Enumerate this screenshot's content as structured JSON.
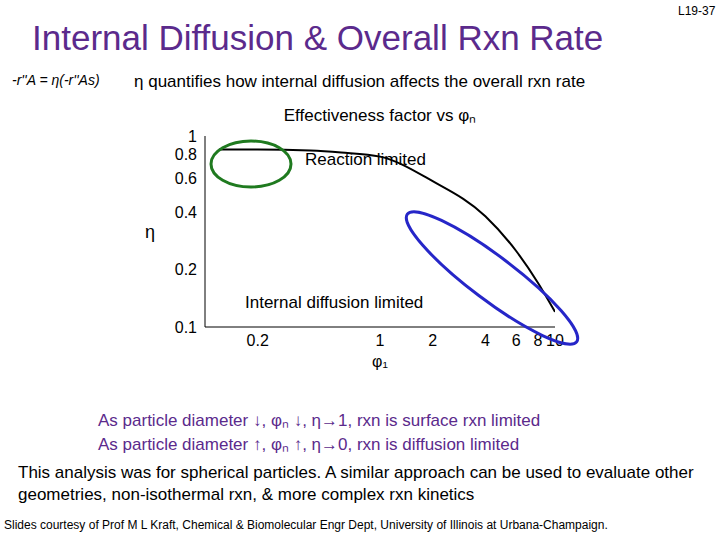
{
  "slide": {
    "page": "L19-37",
    "title": "Internal Diffusion & Overall Rxn Rate",
    "formula": "-r''A = η(-r''As)",
    "note": "η quantifies how internal diffusion affects the overall rxn rate",
    "bullets": [
      "As particle diameter ↓, φₙ ↓, η→1, rxn is surface rxn limited",
      "As particle diameter ↑, φₙ ↑, η→0, rxn is diffusion limited"
    ],
    "paragraph": "This analysis was for spherical particles. A similar approach can be used to evaluate other geometries, non-isothermal rxn, & more complex rxn kinetics",
    "footer": "Slides courtesy of Prof M L Kraft, Chemical & Biomolecular Engr Dept, University of Illinois at Urbana-Champaign."
  },
  "chart_data": {
    "type": "line",
    "title": "Effectiveness factor vs φₙ",
    "x_label": "φ₁",
    "y_label": "η",
    "x": [
      0.12,
      0.2,
      0.4,
      0.6,
      1,
      2,
      4,
      6,
      8,
      10
    ],
    "values": [
      0.85,
      0.85,
      0.84,
      0.82,
      0.78,
      0.58,
      0.38,
      0.25,
      0.17,
      0.12
    ],
    "color": "#000000",
    "xlim": [
      0.1,
      10
    ],
    "ylim": [
      0.1,
      1
    ],
    "xticks": [
      0.2,
      1,
      2,
      4,
      6,
      8,
      10
    ],
    "yticks": [
      0.1,
      0.2,
      0.4,
      0.6,
      0.8,
      1
    ],
    "log": true,
    "grid": false,
    "annotations": [
      "Reaction limited",
      "Internal diffusion limited"
    ]
  }
}
